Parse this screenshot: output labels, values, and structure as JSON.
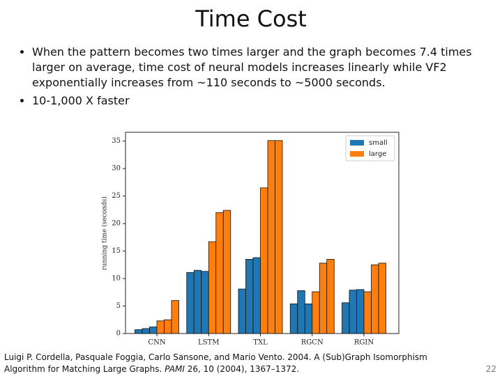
{
  "title": "Time Cost",
  "bullets": [
    "When the pattern becomes two times larger and the graph becomes 7.4 times larger on average, time cost of neural models increases linearly while VF2 exponentially increases from ~110 seconds to ~5000 seconds.",
    "10-1,000 X faster"
  ],
  "footnote": {
    "before": "Luigi P. Cordella, Pasquale Foggia, Carlo Sansone, and Mario Vento. 2004. A (Sub)Graph Isomorphism Algorithm for Matching Large Graphs. ",
    "venue": "PAMI",
    "after": " 26, 10 (2004), 1367–1372."
  },
  "page_number": "22",
  "chart_data": {
    "type": "grouped-bar",
    "ylabel": "running time (seconds)",
    "categories": [
      "CNN",
      "LSTM",
      "TXL",
      "RGCN",
      "RGIN"
    ],
    "series": [
      {
        "name": "small",
        "color": "#1f77b4",
        "values": [
          [
            0.7,
            0.9,
            1.2
          ],
          [
            11.1,
            11.5,
            11.3
          ],
          [
            8.1,
            13.5,
            13.8
          ],
          [
            5.4,
            7.8,
            5.4
          ],
          [
            5.6,
            7.9,
            8.0
          ]
        ]
      },
      {
        "name": "large",
        "color": "#ff7f0e",
        "values": [
          [
            2.3,
            2.5,
            6.0
          ],
          [
            16.7,
            22.0,
            22.4
          ],
          [
            26.5,
            35.1,
            35.1
          ],
          [
            7.6,
            12.8,
            13.5
          ],
          [
            7.6,
            12.5,
            12.8
          ]
        ]
      }
    ],
    "ylim": [
      0,
      36.6
    ],
    "yticks": [
      0,
      5,
      10,
      15,
      20,
      25,
      30,
      35
    ],
    "legend": "upper-right"
  }
}
